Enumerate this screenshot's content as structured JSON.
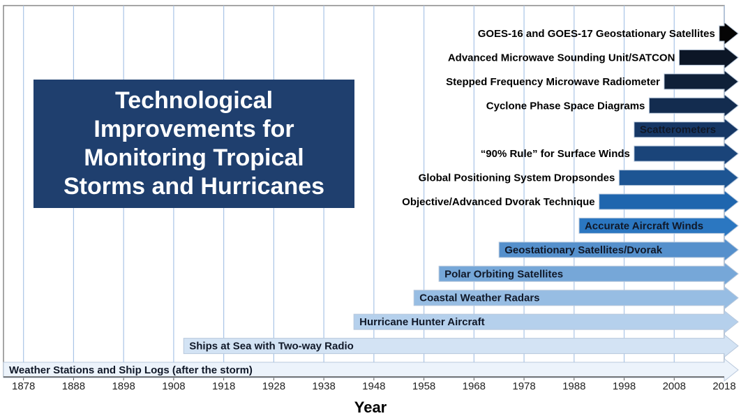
{
  "chart_data": {
    "type": "timeline",
    "title": "Technological Improvements for Monitoring Tropical Storms and Hurricanes",
    "xlabel": "Year",
    "categories": [
      "GOES-16 and GOES-17 Geostationary Satellites",
      "Advanced Microwave Sounding Unit/SATCON",
      "Stepped Frequency Microwave Radiometer",
      "Cyclone Phase Space Diagrams",
      "Scatterometers",
      "“90% Rule” for Surface Winds",
      "Global Positioning System Dropsondes",
      "Objective/Advanced Dvorak Technique",
      "Accurate Aircraft Winds",
      "Geostationary Satellites/Dvorak",
      "Polar Orbiting Satellites",
      "Coastal Weather Radars",
      "Hurricane Hunter Aircraft",
      "Ships at Sea with Two-way Radio",
      "Weather Stations and Ship Logs (after the storm)"
    ],
    "values": [
      2017,
      2009,
      2006,
      2003,
      2000,
      2000,
      1997,
      1993,
      1989,
      1973,
      1961,
      1956,
      1944,
      1910,
      1874
    ],
    "colors": [
      "#050505",
      "#0c1626",
      "#0f2038",
      "#132c4f",
      "#163765",
      "#1a4479",
      "#1d5593",
      "#1f66ae",
      "#2b77c1",
      "#5590cc",
      "#76a7d8",
      "#97bde3",
      "#b5d0ec",
      "#d3e3f4",
      "#ecf3fb"
    ],
    "xlim": [
      1874,
      2018
    ],
    "xticks": [
      1878,
      1888,
      1898,
      1908,
      1918,
      1928,
      1938,
      1948,
      1958,
      1968,
      1978,
      1988,
      1998,
      2008,
      2018
    ],
    "grid": true
  }
}
